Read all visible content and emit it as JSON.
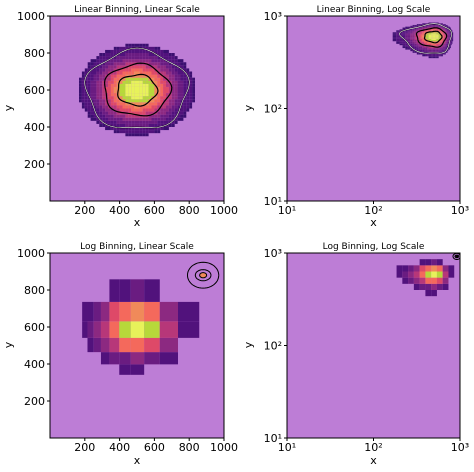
{
  "colors": {
    "background": "#bd7dd6",
    "colormap": [
      "#3b0f70",
      "#51127c",
      "#6a1c81",
      "#8c2981",
      "#b73779",
      "#de4968",
      "#f4695c",
      "#f08a5a",
      "#b7d83a",
      "#e7f25a"
    ],
    "contour": "#000000",
    "contour_highlight": "#ffffff"
  },
  "chart_data": [
    {
      "type": "heatmap",
      "title": "Linear Binning, Linear Scale",
      "xlabel": "x",
      "ylabel": "y",
      "xscale": "linear",
      "yscale": "linear",
      "xlim": [
        0,
        1000
      ],
      "ylim": [
        0,
        1000
      ],
      "xticks": [
        "200",
        "400",
        "600",
        "800",
        "1000"
      ],
      "yticks": [
        "200",
        "400",
        "600",
        "800",
        "1000"
      ],
      "density_center": [
        500,
        600
      ],
      "density_spread": [
        150,
        110
      ]
    },
    {
      "type": "heatmap",
      "title": "Linear Binning, Log Scale",
      "xlabel": "x",
      "ylabel": "y",
      "xscale": "log",
      "yscale": "log",
      "xlim": [
        10,
        1000
      ],
      "ylim": [
        10,
        1000
      ],
      "xticks": [
        "10¹",
        "10²",
        "10³"
      ],
      "yticks": [
        "10¹",
        "10²",
        "10³"
      ],
      "density_center": [
        500,
        600
      ],
      "density_spread": [
        150,
        110
      ]
    },
    {
      "type": "heatmap",
      "title": "Log Binning, Linear Scale",
      "xlabel": "x",
      "ylabel": "y",
      "xscale": "linear",
      "yscale": "linear",
      "xlim": [
        0,
        1000
      ],
      "ylim": [
        0,
        1000
      ],
      "xticks": [
        "200",
        "400",
        "600",
        "800",
        "1000"
      ],
      "yticks": [
        "200",
        "400",
        "600",
        "800",
        "1000"
      ],
      "density_center": [
        500,
        600
      ],
      "density_spread": [
        150,
        110
      ],
      "contour_center": [
        880,
        880
      ]
    },
    {
      "type": "heatmap",
      "title": "Log Binning, Log Scale",
      "xlabel": "x",
      "ylabel": "y",
      "xscale": "log",
      "yscale": "log",
      "xlim": [
        10,
        1000
      ],
      "ylim": [
        10,
        1000
      ],
      "xticks": [
        "10¹",
        "10²",
        "10³"
      ],
      "yticks": [
        "10¹",
        "10²",
        "10³"
      ],
      "density_center": [
        500,
        600
      ],
      "density_spread": [
        150,
        110
      ],
      "contour_center": [
        920,
        920
      ]
    }
  ]
}
